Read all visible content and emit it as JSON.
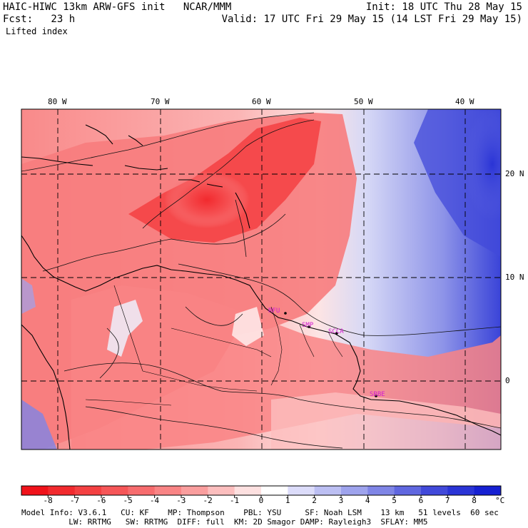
{
  "header": {
    "line1_left": "HAIC-HIWC 13km ARW-GFS init   NCAR/MMM",
    "line1_right": "Init: 18 UTC Thu 28 May 15",
    "line2_left": "Fcst:   23 h",
    "line2_right": "Valid: 17 UTC Fri 29 May 15 (14 LST Fri 29 May 15)",
    "line3_left": "Lifted index"
  },
  "map": {
    "lon_labels": [
      "80 W",
      "70 W",
      "60 W",
      "50 W",
      "40 W"
    ],
    "lat_labels": [
      "20 N",
      "10 N",
      "0"
    ],
    "stations": [
      "RFU",
      "SMP",
      "SCCA",
      "SBBE"
    ],
    "station_color": "#d21cd2",
    "warm_color": "#e81e28",
    "cold_color": "#2a3cd8"
  },
  "colorbar": {
    "ticks": [
      "-8",
      "-7",
      "-6",
      "-5",
      "-4",
      "-3",
      "-2",
      "-1",
      "0",
      "1",
      "2",
      "3",
      "4",
      "5",
      "6",
      "7",
      "8"
    ],
    "unit": "°C",
    "colors": [
      "#f0121a",
      "#f22a2e",
      "#f44042",
      "#f65658",
      "#f76c6e",
      "#f98485",
      "#fa9e9e",
      "#fcbebe",
      "#fde0e0",
      "#ffffff",
      "#dcdcfa",
      "#bcbff3",
      "#9ea3ed",
      "#7f85e6",
      "#6067e0",
      "#4149da",
      "#2a34d6",
      "#1620d2"
    ]
  },
  "footer": {
    "line1": "Model Info: V3.6.1   CU: KF    MP: Thompson    PBL: YSU     SF: Noah LSM    13 km   51 levels  60 sec",
    "line2": "          LW: RRTMG   SW: RRTMG  DIFF: full  KM: 2D Smagor DAMP: Rayleigh3  SFLAY: MM5"
  }
}
